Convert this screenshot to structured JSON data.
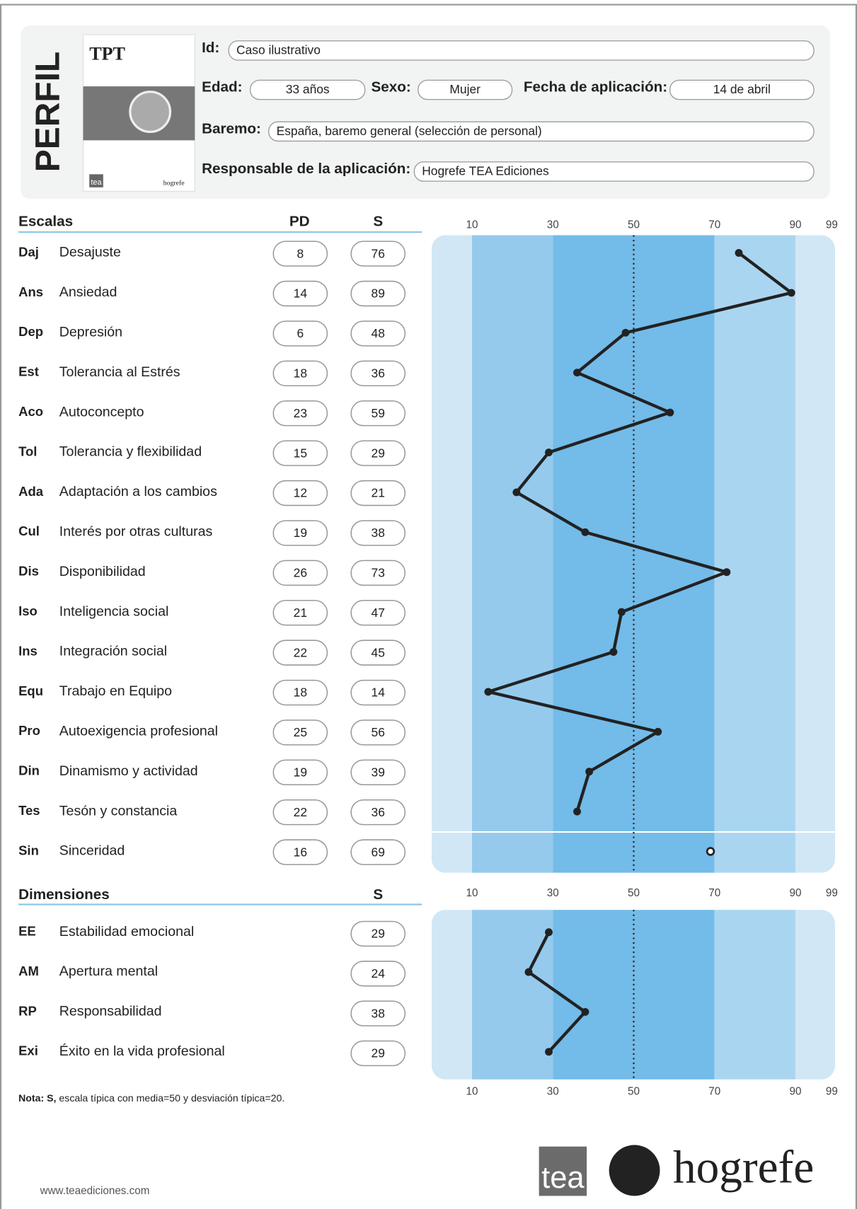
{
  "title": "PERFIL",
  "cover": {
    "title": "TPT",
    "logo": "tea",
    "publisher": "hogrefe"
  },
  "fields": [
    {
      "label": "Id:",
      "value": "Caso ilustrativo"
    },
    {
      "label": "Edad:",
      "value": "33 años"
    },
    {
      "label": "Sexo:",
      "value": "Mujer"
    },
    {
      "label": "Fecha de aplicación:",
      "value": "14 de abril"
    },
    {
      "label": "Baremo:",
      "value": "España, baremo general (selección de personal)"
    },
    {
      "label": "Responsable de la aplicación:",
      "value": "Hogrefe TEA Ediciones"
    }
  ],
  "scales": {
    "heading": "Escalas",
    "pd_heading": "PD",
    "s_heading": "S",
    "rows": [
      {
        "code": "Daj",
        "name": "Desajuste",
        "pd": 8,
        "s": 76
      },
      {
        "code": "Ans",
        "name": "Ansiedad",
        "pd": 14,
        "s": 89
      },
      {
        "code": "Dep",
        "name": "Depresión",
        "pd": 6,
        "s": 48
      },
      {
        "code": "Est",
        "name": "Tolerancia al Estrés",
        "pd": 18,
        "s": 36
      },
      {
        "code": "Aco",
        "name": "Autoconcepto",
        "pd": 23,
        "s": 59
      },
      {
        "code": "Tol",
        "name": "Tolerancia y flexibilidad",
        "pd": 15,
        "s": 29
      },
      {
        "code": "Ada",
        "name": "Adaptación a los cambios",
        "pd": 12,
        "s": 21
      },
      {
        "code": "Cul",
        "name": "Interés por otras culturas",
        "pd": 19,
        "s": 38
      },
      {
        "code": "Dis",
        "name": "Disponibilidad",
        "pd": 26,
        "s": 73
      },
      {
        "code": "Iso",
        "name": "Inteligencia social",
        "pd": 21,
        "s": 47
      },
      {
        "code": "Ins",
        "name": "Integración social",
        "pd": 22,
        "s": 45
      },
      {
        "code": "Equ",
        "name": "Trabajo en Equipo",
        "pd": 18,
        "s": 14
      },
      {
        "code": "Pro",
        "name": "Autoexigencia profesional",
        "pd": 25,
        "s": 56
      },
      {
        "code": "Din",
        "name": "Dinamismo y actividad",
        "pd": 19,
        "s": 39
      },
      {
        "code": "Tes",
        "name": "Tesón y constancia",
        "pd": 22,
        "s": 36
      },
      {
        "code": "Sin",
        "name": "Sinceridad",
        "pd": 16,
        "s": 69
      }
    ]
  },
  "dimensions": {
    "heading": "Dimensiones",
    "s_heading": "S",
    "rows": [
      {
        "code": "EE",
        "name": "Estabilidad emocional",
        "s": 29
      },
      {
        "code": "AM",
        "name": "Apertura mental",
        "s": 24
      },
      {
        "code": "RP",
        "name": "Responsabilidad",
        "s": 38
      },
      {
        "code": "Exi",
        "name": "Éxito en la vida profesional",
        "s": 29
      }
    ]
  },
  "axis": {
    "xlim": [
      0,
      100
    ],
    "xticks": [
      10,
      30,
      50,
      70,
      90,
      99
    ]
  },
  "note": {
    "bold": "Nota: S,",
    "text": "escala típica con media=50 y desviación típica=20."
  },
  "footer": {
    "website": "www.teaediciones.com",
    "logo": "tea",
    "publisher": "hogrefe"
  }
}
